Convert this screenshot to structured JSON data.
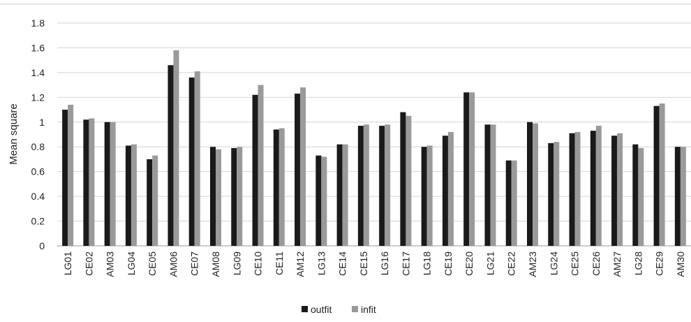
{
  "chart_data": {
    "type": "bar",
    "ylabel": "Mean square",
    "ylim": [
      0,
      1.8
    ],
    "yticks": [
      "0",
      "0.2",
      "0.4",
      "0.6",
      "0.8",
      "1",
      "1.2",
      "1.4",
      "1.6",
      "1.8"
    ],
    "grid": true,
    "legend_position": "bottom",
    "categories": [
      "LG01",
      "CE02",
      "AM03",
      "LG04",
      "CE05",
      "AM06",
      "CE07",
      "AM08",
      "LG09",
      "CE10",
      "CE11",
      "AM12",
      "LG13",
      "CE14",
      "CE15",
      "LG16",
      "CE17",
      "LG18",
      "CE19",
      "CE20",
      "LG21",
      "CE22",
      "AM23",
      "LG24",
      "CE25",
      "CE26",
      "AM27",
      "LG28",
      "CE29",
      "AM30"
    ],
    "series": [
      {
        "name": "outfit",
        "color": "#1a1a1a",
        "values": [
          1.1,
          1.02,
          1.0,
          0.81,
          0.7,
          1.46,
          1.36,
          0.8,
          0.79,
          1.22,
          0.94,
          1.23,
          0.73,
          0.82,
          0.97,
          0.97,
          1.08,
          0.8,
          0.89,
          1.24,
          0.98,
          0.69,
          1.0,
          0.83,
          0.91,
          0.93,
          0.89,
          0.82,
          1.13,
          0.8
        ]
      },
      {
        "name": "infit",
        "color": "#9a9a9a",
        "values": [
          1.14,
          1.03,
          1.0,
          0.82,
          0.73,
          1.58,
          1.41,
          0.78,
          0.8,
          1.3,
          0.95,
          1.28,
          0.72,
          0.82,
          0.98,
          0.98,
          1.05,
          0.81,
          0.92,
          1.24,
          0.98,
          0.69,
          0.99,
          0.84,
          0.92,
          0.97,
          0.91,
          0.79,
          1.15,
          0.8
        ]
      }
    ]
  }
}
